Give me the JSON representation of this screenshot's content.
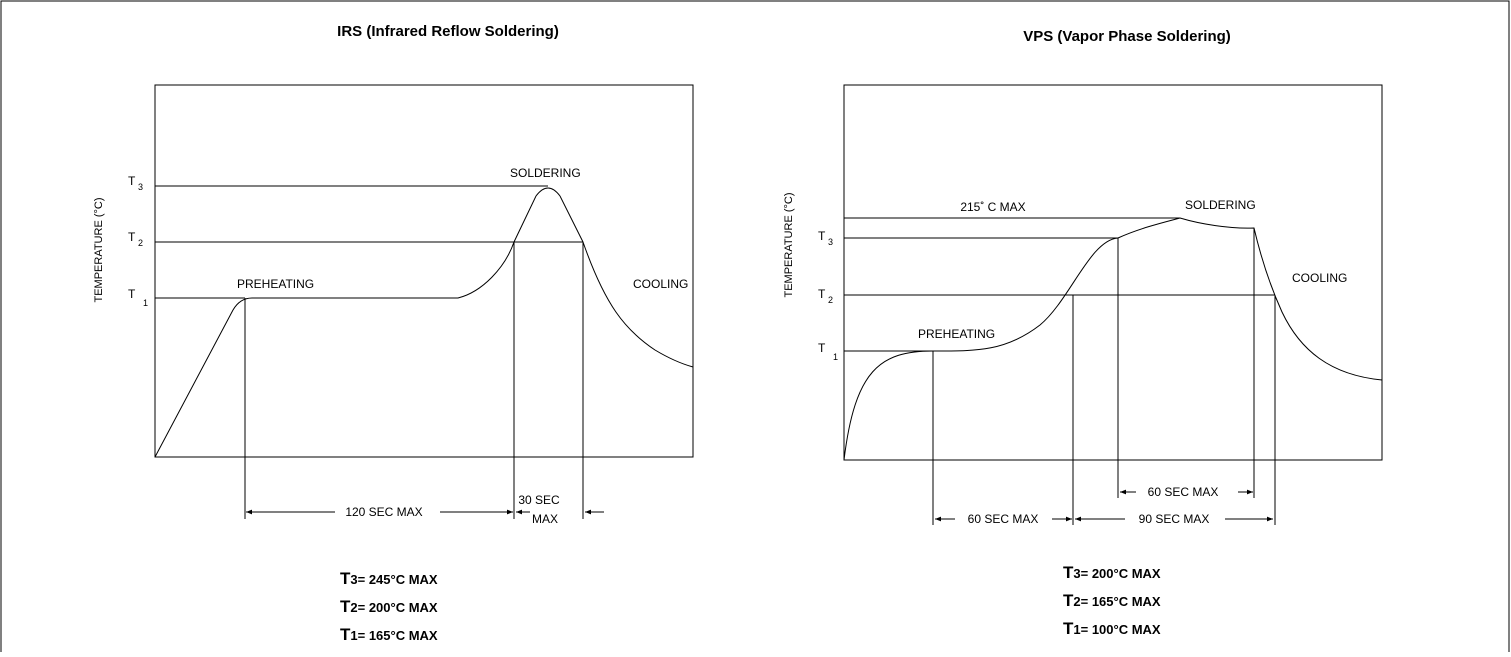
{
  "frame": {
    "border_color": "#000000",
    "background": "#ffffff"
  },
  "irs": {
    "title": "IRS (Infrared Reflow Soldering)",
    "ylabel": "TEMPERATURE (°C)",
    "t3": {
      "main": "T",
      "sub": "3"
    },
    "t2": {
      "main": "T",
      "sub": "2"
    },
    "t1": {
      "main": "T",
      "sub": "1"
    },
    "preheating": "PREHEATING",
    "soldering": "SOLDERING",
    "cooling": "COOLING",
    "dim_120": "120 SEC MAX",
    "dim_30_line1": "30 SEC",
    "dim_30_line2": "MAX",
    "eq": [
      {
        "big": "T",
        "rest": "3= 245°C MAX"
      },
      {
        "big": "T",
        "rest": "2= 200°C MAX"
      },
      {
        "big": "T",
        "rest": "1= 165°C MAX"
      }
    ]
  },
  "vps": {
    "title": "VPS (Vapor Phase Soldering)",
    "ylabel": "TEMPERATURE (°C)",
    "t3": {
      "main": "T",
      "sub": "3"
    },
    "t2": {
      "main": "T",
      "sub": "2"
    },
    "t1": {
      "main": "T",
      "sub": "1"
    },
    "max215": "215˚ C MAX",
    "preheating": "PREHEATING",
    "soldering": "SOLDERING",
    "cooling": "COOLING",
    "dim_60_top": "60 SEC MAX",
    "dim_60_bottom": "60 SEC MAX",
    "dim_90": "90 SEC MAX",
    "eq": [
      {
        "big": "T",
        "rest": "3= 200°C MAX"
      },
      {
        "big": "T",
        "rest": "2= 165°C MAX"
      },
      {
        "big": "T",
        "rest": "1= 100°C MAX"
      }
    ]
  }
}
